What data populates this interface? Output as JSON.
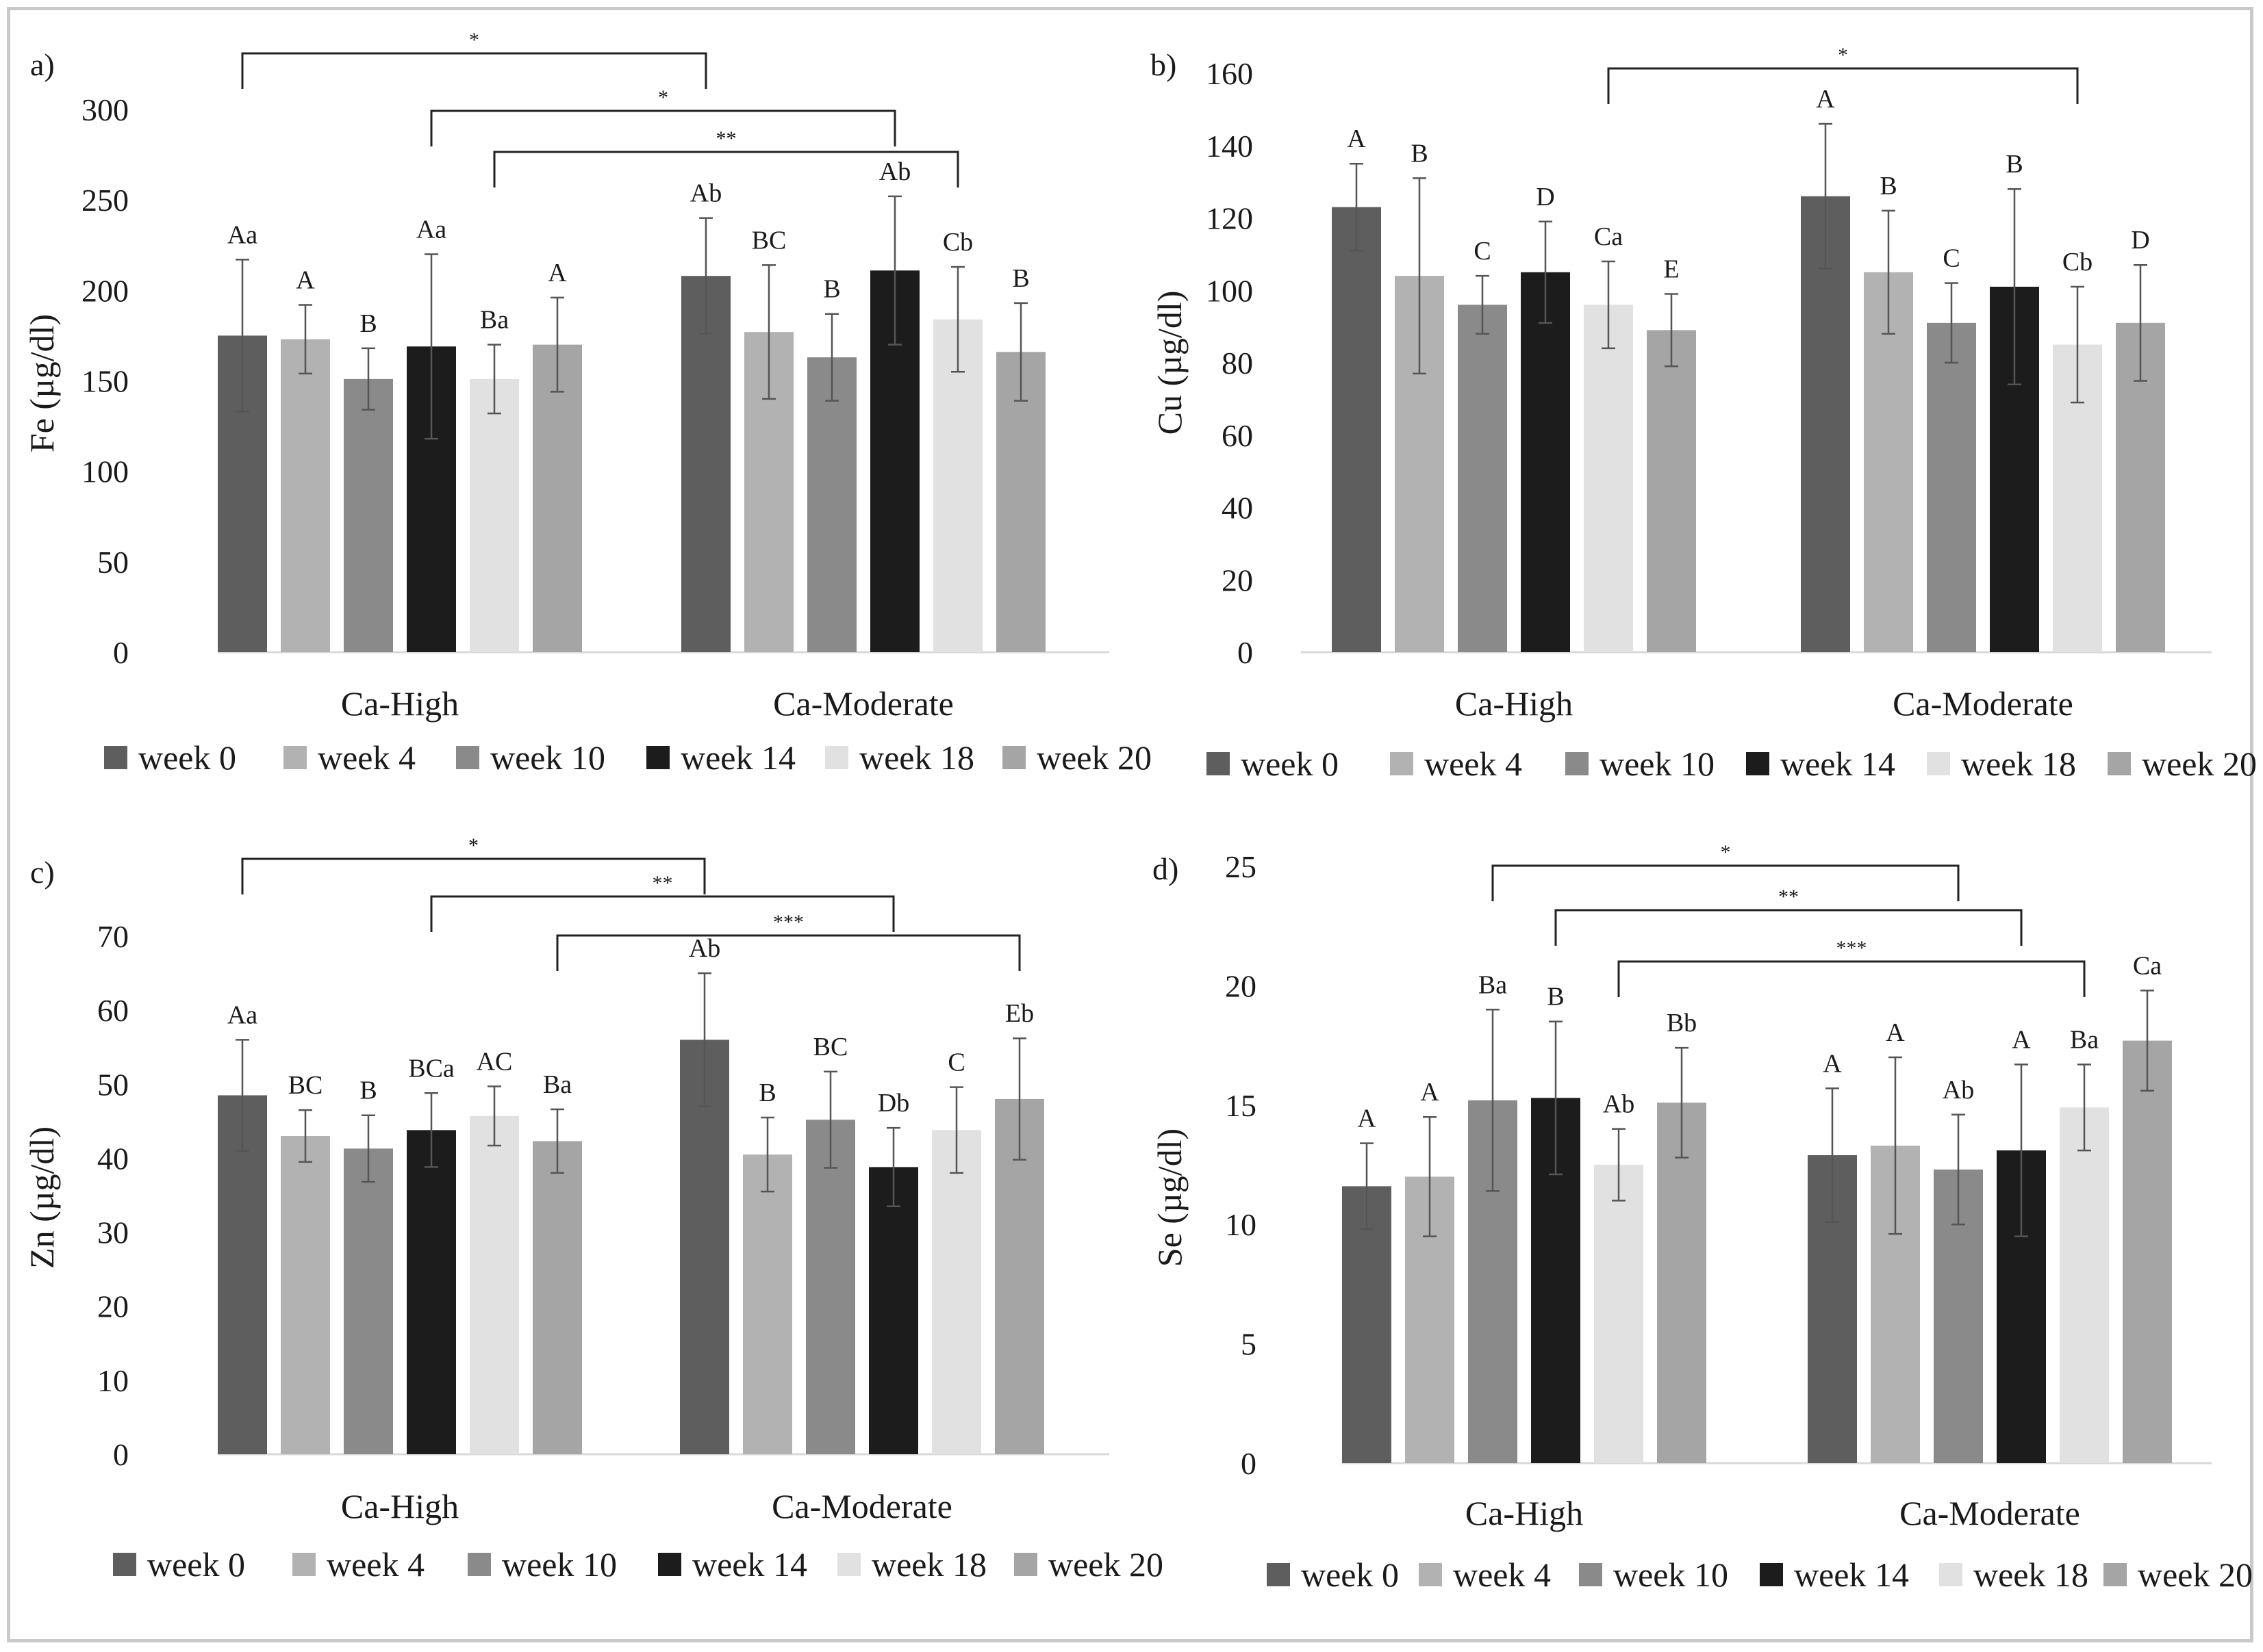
{
  "series_colors": [
    "#5e5e5e",
    "#b2b2b2",
    "#8a8a8a",
    "#1c1c1c",
    "#e1e1e1",
    "#a5a5a5"
  ],
  "axis_color": "#d9d9d9",
  "chart_data": [
    {
      "type": "bar",
      "panel_label": "a)",
      "ylabel": "Fe (µg/dl)",
      "ylim": [
        0,
        300
      ],
      "yticks": [
        0,
        50,
        100,
        150,
        200,
        250,
        300
      ],
      "categories": [
        "Ca-High",
        "Ca-Moderate"
      ],
      "series": [
        {
          "name": "week 0",
          "values": [
            175,
            208
          ],
          "errors": [
            42,
            32
          ],
          "letters": [
            "Aa",
            "Ab"
          ]
        },
        {
          "name": "week 4",
          "values": [
            173,
            177
          ],
          "errors": [
            19,
            37
          ],
          "letters": [
            "A",
            "BC"
          ]
        },
        {
          "name": "week 10",
          "values": [
            151,
            163
          ],
          "errors": [
            17,
            24
          ],
          "letters": [
            "B",
            "B"
          ]
        },
        {
          "name": "week 14",
          "values": [
            169,
            211
          ],
          "errors": [
            51,
            41
          ],
          "letters": [
            "Aa",
            "Ab"
          ]
        },
        {
          "name": "week 18",
          "values": [
            151,
            184
          ],
          "errors": [
            19,
            29
          ],
          "letters": [
            "Ba",
            "Cb"
          ]
        },
        {
          "name": "week 20",
          "values": [
            170,
            166
          ],
          "errors": [
            26,
            27
          ],
          "letters": [
            "A",
            "B"
          ]
        }
      ],
      "significance": [
        {
          "label": "*",
          "from": [
            0,
            0
          ],
          "to": [
            1,
            0
          ]
        },
        {
          "label": "*",
          "from": [
            0,
            3
          ],
          "to": [
            1,
            3
          ]
        },
        {
          "label": "**",
          "from": [
            0,
            4
          ],
          "to": [
            1,
            4
          ]
        }
      ]
    },
    {
      "type": "bar",
      "panel_label": "b)",
      "ylabel": "Cu (µg/dl)",
      "ylim": [
        0,
        160
      ],
      "yticks": [
        0,
        20,
        40,
        60,
        80,
        100,
        120,
        140,
        160
      ],
      "categories": [
        "Ca-High",
        "Ca-Moderate"
      ],
      "series": [
        {
          "name": "week 0",
          "values": [
            123,
            126
          ],
          "errors": [
            12,
            20
          ],
          "letters": [
            "A",
            "A"
          ]
        },
        {
          "name": "week 4",
          "values": [
            104,
            105
          ],
          "errors": [
            27,
            17
          ],
          "letters": [
            "B",
            "B"
          ]
        },
        {
          "name": "week 10",
          "values": [
            96,
            91
          ],
          "errors": [
            8,
            11
          ],
          "letters": [
            "C",
            "C"
          ]
        },
        {
          "name": "week 14",
          "values": [
            105,
            101
          ],
          "errors": [
            14,
            27
          ],
          "letters": [
            "D",
            "B"
          ]
        },
        {
          "name": "week 18",
          "values": [
            96,
            85
          ],
          "errors": [
            12,
            16
          ],
          "letters": [
            "Ca",
            "Cb"
          ]
        },
        {
          "name": "week 20",
          "values": [
            89,
            91
          ],
          "errors": [
            10,
            16
          ],
          "letters": [
            "E",
            "D"
          ]
        }
      ],
      "significance": [
        {
          "label": "*",
          "from": [
            0,
            4
          ],
          "to": [
            1,
            4
          ]
        }
      ]
    },
    {
      "type": "bar",
      "panel_label": "c)",
      "ylabel": "Zn (µg/dl)",
      "ylim": [
        0,
        70
      ],
      "yticks": [
        0,
        10,
        20,
        30,
        40,
        50,
        60,
        70
      ],
      "categories": [
        "Ca-High",
        "Ca-Moderate"
      ],
      "series": [
        {
          "name": "week 0",
          "values": [
            48.5,
            56
          ],
          "errors": [
            7.5,
            9
          ],
          "letters": [
            "Aa",
            "Ab"
          ]
        },
        {
          "name": "week 4",
          "values": [
            43,
            40.5
          ],
          "errors": [
            3.5,
            5
          ],
          "letters": [
            "BC",
            "B"
          ]
        },
        {
          "name": "week 10",
          "values": [
            41.3,
            45.2
          ],
          "errors": [
            4.5,
            6.5
          ],
          "letters": [
            "B",
            "BC"
          ]
        },
        {
          "name": "week 14",
          "values": [
            43.8,
            38.8
          ],
          "errors": [
            5,
            5.3
          ],
          "letters": [
            "BCa",
            "Db"
          ]
        },
        {
          "name": "week 18",
          "values": [
            45.7,
            43.8
          ],
          "errors": [
            4,
            5.8
          ],
          "letters": [
            "AC",
            "C"
          ]
        },
        {
          "name": "week 20",
          "values": [
            42.3,
            48
          ],
          "errors": [
            4.3,
            8.2
          ],
          "letters": [
            "Ba",
            "Eb"
          ]
        }
      ],
      "significance": [
        {
          "label": "*",
          "from": [
            0,
            0
          ],
          "to": [
            1,
            0
          ]
        },
        {
          "label": "**",
          "from": [
            0,
            3
          ],
          "to": [
            1,
            3
          ]
        },
        {
          "label": "***",
          "from": [
            0,
            5
          ],
          "to": [
            1,
            5
          ]
        }
      ]
    },
    {
      "type": "bar",
      "panel_label": "d)",
      "ylabel": "Se (µg/dl)",
      "ylim": [
        0,
        25
      ],
      "yticks": [
        0,
        5,
        10,
        15,
        20,
        25
      ],
      "categories": [
        "Ca-High",
        "Ca-Moderate"
      ],
      "series": [
        {
          "name": "week 0",
          "values": [
            11.6,
            12.9
          ],
          "errors": [
            1.8,
            2.8
          ],
          "letters": [
            "A",
            "A"
          ]
        },
        {
          "name": "week 4",
          "values": [
            12,
            13.3
          ],
          "errors": [
            2.5,
            3.7
          ],
          "letters": [
            "A",
            "A"
          ]
        },
        {
          "name": "week 10",
          "values": [
            15.2,
            12.3
          ],
          "errors": [
            3.8,
            2.3
          ],
          "letters": [
            "Ba",
            "Ab"
          ]
        },
        {
          "name": "week 14",
          "values": [
            15.3,
            13.1
          ],
          "errors": [
            3.2,
            3.6
          ],
          "letters": [
            "B",
            "A"
          ]
        },
        {
          "name": "week 18",
          "values": [
            12.5,
            14.9
          ],
          "errors": [
            1.5,
            1.8
          ],
          "letters": [
            "Ab",
            "Ba"
          ]
        },
        {
          "name": "week 20",
          "values": [
            15.1,
            17.7
          ],
          "errors": [
            2.3,
            2.1
          ],
          "letters": [
            "Bb",
            "Ca"
          ]
        }
      ],
      "significance": [
        {
          "label": "*",
          "from": [
            0,
            2
          ],
          "to": [
            1,
            2
          ]
        },
        {
          "label": "**",
          "from": [
            0,
            3
          ],
          "to": [
            1,
            3
          ]
        },
        {
          "label": "***",
          "from": [
            0,
            4
          ],
          "to": [
            1,
            4
          ]
        }
      ]
    }
  ]
}
